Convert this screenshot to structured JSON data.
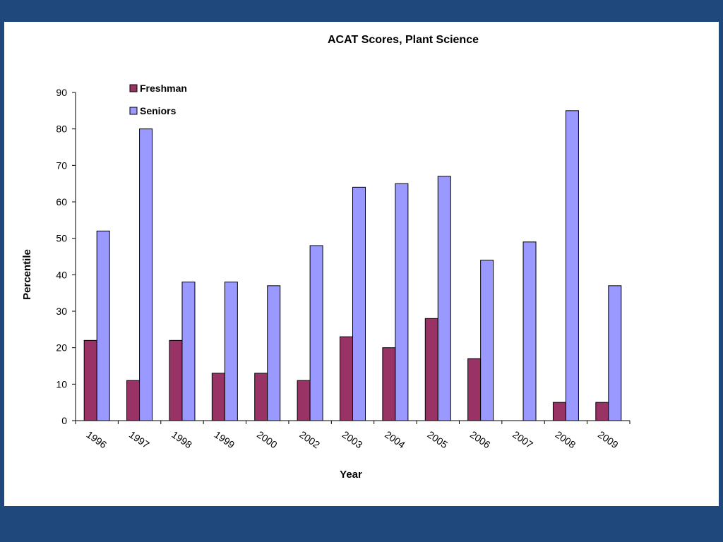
{
  "chart_data": {
    "type": "bar",
    "title": "ACAT Scores, Plant Science",
    "xlabel": "Year",
    "ylabel": "Percentile",
    "ylim": [
      0,
      90
    ],
    "yticks": [
      "0",
      "10",
      "20",
      "30",
      "40",
      "50",
      "60",
      "70",
      "80",
      "90"
    ],
    "categories": [
      "1996",
      "1997",
      "1998",
      "1999",
      "2000",
      "2002",
      "2003",
      "2004",
      "2005",
      "2006",
      "2007",
      "2008",
      "2009"
    ],
    "series": [
      {
        "name": "Freshman",
        "color": "#993366",
        "values": [
          22,
          11,
          22,
          13,
          13,
          11,
          23,
          20,
          28,
          17,
          0,
          5,
          5
        ]
      },
      {
        "name": "Seniors",
        "color": "#9999ff",
        "values": [
          52,
          80,
          38,
          38,
          37,
          48,
          64,
          65,
          67,
          44,
          49,
          85,
          37
        ]
      }
    ],
    "grid": false,
    "legend_position": "top-left"
  },
  "colors": {
    "background": "#1f497d",
    "plot_background": "#ffffff"
  }
}
